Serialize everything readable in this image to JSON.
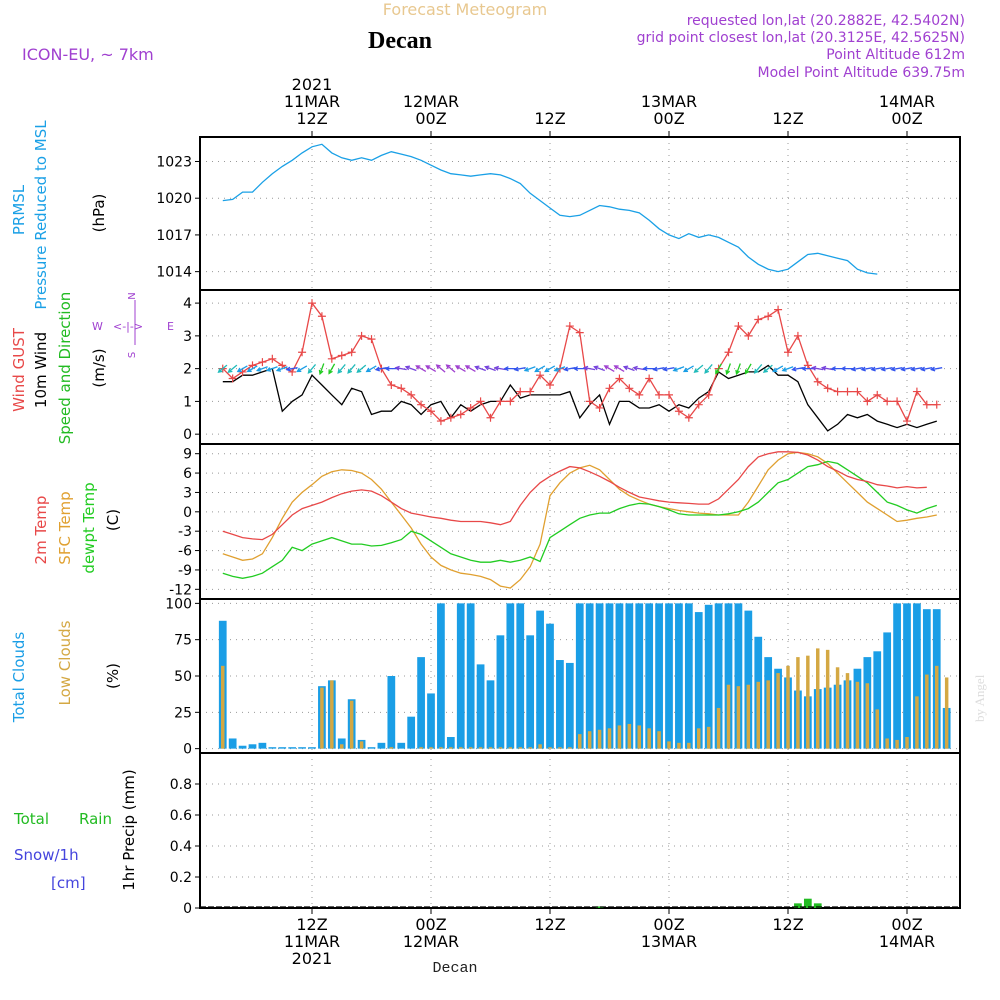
{
  "header": {
    "forecast_title": "Forecast Meteogram",
    "location": "Decan",
    "model": "ICON-EU, ~ 7km",
    "requested_point": "requested lon,lat (20.2882E, 42.5402N)",
    "grid_point": "grid point closest lon,lat (20.3125E, 42.5625N)",
    "point_altitude": "Point Altitude 612m",
    "model_altitude": "Model Point Altitude 639.75m",
    "footer_location": "Decan",
    "watermark": "by Angel"
  },
  "time_axis": {
    "start_hour": 0,
    "end_hour": 64,
    "top_labels": [
      {
        "hour": 9,
        "lines": [
          "2021",
          "11MAR",
          "12Z"
        ]
      },
      {
        "hour": 21,
        "lines": [
          "12MAR",
          "00Z"
        ]
      },
      {
        "hour": 33,
        "lines": [
          "12Z"
        ]
      },
      {
        "hour": 45,
        "lines": [
          "13MAR",
          "00Z"
        ]
      },
      {
        "hour": 57,
        "lines": [
          "12Z"
        ]
      },
      {
        "hour": 69,
        "lines": [
          "14MAR",
          "00Z"
        ]
      }
    ],
    "bottom_labels": [
      {
        "hour": 9,
        "lines": [
          "12Z",
          "11MAR",
          "2021"
        ]
      },
      {
        "hour": 21,
        "lines": [
          "00Z",
          "12MAR"
        ]
      },
      {
        "hour": 33,
        "lines": [
          "12Z"
        ]
      },
      {
        "hour": 45,
        "lines": [
          "00Z",
          "13MAR"
        ]
      },
      {
        "hour": 57,
        "lines": [
          "12Z"
        ]
      },
      {
        "hour": 69,
        "lines": [
          "00Z",
          "14MAR"
        ]
      }
    ]
  },
  "colors": {
    "pressure": "#1aa0e6",
    "gust": "#e84848",
    "wind": "#000000",
    "wind_green": "#22bb22",
    "temp": "#e84848",
    "sfc": "#e0a030",
    "dewpt": "#22cc22",
    "total_clouds": "#1a9ee6",
    "low_clouds": "#d4a843",
    "rain": "#22bb22",
    "snow": "#4444dd",
    "compass": "#a040d0",
    "header_purple": "#a040d0",
    "title_faded": "#e8c890"
  },
  "chart_data": [
    {
      "panel": "pressure",
      "type": "line",
      "label_lines": [
        "PRMSL",
        "Pressure Reduced to MSL"
      ],
      "unit": "(hPa)",
      "ylim": [
        1012.5,
        1025
      ],
      "yticks": [
        1014,
        1017,
        1020,
        1023
      ],
      "x_hours_start": 0,
      "values": [
        1019.8,
        1019.9,
        1020.5,
        1020.5,
        1021.3,
        1022.0,
        1022.6,
        1023.1,
        1023.7,
        1024.2,
        1024.4,
        1023.7,
        1023.3,
        1023.1,
        1023.3,
        1023.1,
        1023.5,
        1023.8,
        1023.6,
        1023.4,
        1023.1,
        1022.7,
        1022.3,
        1022.0,
        1021.9,
        1021.8,
        1021.9,
        1022.0,
        1021.9,
        1021.6,
        1021.2,
        1020.4,
        1019.8,
        1019.2,
        1018.6,
        1018.5,
        1018.6,
        1019.0,
        1019.4,
        1019.3,
        1019.1,
        1019.0,
        1018.8,
        1018.2,
        1017.5,
        1017.0,
        1016.7,
        1017.1,
        1016.8,
        1017.0,
        1016.8,
        1016.4,
        1016.0,
        1015.2,
        1014.6,
        1014.2,
        1014.0,
        1014.2,
        1014.8,
        1015.4,
        1015.5,
        1015.3,
        1015.1,
        1014.9,
        1014.2,
        1013.9,
        1013.8
      ]
    },
    {
      "panel": "wind",
      "type": "line",
      "label_lines": [
        "Wind GUST",
        "10m Wind",
        "Speed and Direction"
      ],
      "unit": "(m/s)",
      "compass": {
        "n": "N",
        "s": "S",
        "e": "E",
        "w": "W"
      },
      "ylim": [
        -0.3,
        4.4
      ],
      "yticks": [
        0,
        1,
        2,
        3,
        4
      ],
      "x_hours_start": 0,
      "gust": [
        2.0,
        1.7,
        1.9,
        2.1,
        2.2,
        2.3,
        2.1,
        1.9,
        2.5,
        4.0,
        3.6,
        2.3,
        2.4,
        2.5,
        3.0,
        2.9,
        2.0,
        1.5,
        1.4,
        1.2,
        0.9,
        0.7,
        0.4,
        0.5,
        0.6,
        0.8,
        1.0,
        0.5,
        1.0,
        1.0,
        1.3,
        1.3,
        1.8,
        1.5,
        2.0,
        3.3,
        3.1,
        1.0,
        0.8,
        1.4,
        1.7,
        1.4,
        1.2,
        1.7,
        1.2,
        1.2,
        0.7,
        0.5,
        0.9,
        1.2,
        2.0,
        2.5,
        3.3,
        3.0,
        3.5,
        3.6,
        3.8,
        2.5,
        3.0,
        2.1,
        1.6,
        1.4,
        1.3,
        1.3,
        1.3,
        1.0,
        1.2,
        1.0,
        1.0,
        0.4,
        1.3,
        0.9,
        0.9
      ],
      "wind": [
        1.6,
        1.6,
        1.8,
        1.8,
        1.9,
        2.0,
        0.7,
        1.0,
        1.2,
        1.8,
        1.5,
        1.2,
        0.9,
        1.4,
        1.3,
        0.6,
        0.7,
        0.7,
        1.0,
        0.9,
        0.6,
        0.9,
        1.0,
        0.5,
        0.9,
        0.7,
        0.9,
        1.0,
        1.0,
        1.5,
        1.1,
        1.2,
        1.2,
        1.2,
        1.2,
        1.3,
        0.5,
        0.9,
        1.2,
        0.3,
        1.0,
        1.0,
        0.8,
        0.8,
        0.9,
        0.7,
        0.9,
        0.8,
        1.1,
        1.3,
        1.9,
        1.7,
        1.8,
        1.9,
        1.9,
        2.1,
        1.8,
        1.8,
        1.6,
        0.9,
        0.5,
        0.1,
        0.3,
        0.6,
        0.5,
        0.6,
        0.4,
        0.3,
        0.2,
        0.3,
        0.2,
        0.3,
        0.4
      ],
      "arrow_y": 2.0,
      "arrow_dir_deg": [
        230,
        230,
        240,
        240,
        250,
        250,
        250,
        260,
        240,
        220,
        200,
        210,
        220,
        220,
        230,
        240,
        260,
        270,
        280,
        290,
        300,
        300,
        310,
        310,
        300,
        300,
        290,
        290,
        280,
        270,
        260,
        250,
        240,
        240,
        250,
        260,
        270,
        280,
        290,
        300,
        300,
        290,
        280,
        270,
        260,
        260,
        250,
        240,
        230,
        220,
        210,
        200,
        200,
        210,
        220,
        230,
        240,
        250,
        260,
        270,
        280,
        280,
        270,
        270,
        260,
        260,
        260,
        260,
        260,
        260,
        260,
        260,
        260
      ]
    },
    {
      "panel": "temperature",
      "type": "line",
      "label_lines": [
        "2m Temp",
        "SFC Temp",
        "dewpt Temp"
      ],
      "unit": "(C)",
      "ylim": [
        -13.5,
        10.5
      ],
      "yticks": [
        -12,
        -9,
        -6,
        -3,
        0,
        3,
        6,
        9
      ],
      "x_hours_start": 0,
      "temp2m": [
        -3.0,
        -3.5,
        -4.0,
        -4.2,
        -4.3,
        -3.5,
        -2.0,
        -0.5,
        0.5,
        1.0,
        1.5,
        2.2,
        2.8,
        3.2,
        3.4,
        3.2,
        2.5,
        1.5,
        0.5,
        -0.2,
        -0.5,
        -0.8,
        -1.0,
        -1.3,
        -1.5,
        -1.5,
        -1.5,
        -1.7,
        -2.0,
        -1.5,
        1.0,
        3.0,
        4.5,
        5.5,
        6.3,
        7.0,
        6.8,
        6.2,
        5.5,
        4.7,
        3.8,
        3.0,
        2.3,
        2.0,
        1.7,
        1.5,
        1.4,
        1.3,
        1.2,
        1.2,
        2.0,
        3.5,
        5.0,
        7.0,
        8.5,
        9.0,
        9.3,
        9.3,
        9.2,
        8.8,
        8.0,
        7.0,
        6.3,
        5.5,
        5.0,
        4.7,
        4.2,
        4.0,
        3.7,
        3.9,
        3.7,
        3.8
      ],
      "sfc": [
        -6.5,
        -7.0,
        -7.5,
        -7.3,
        -6.5,
        -4.0,
        -1.0,
        1.5,
        3.0,
        4.2,
        5.5,
        6.2,
        6.5,
        6.4,
        6.0,
        5.0,
        3.5,
        1.5,
        -0.5,
        -2.5,
        -5.0,
        -7.0,
        -8.3,
        -9.0,
        -9.5,
        -9.7,
        -10.0,
        -10.5,
        -11.5,
        -11.8,
        -10.5,
        -8.5,
        -5.0,
        2.5,
        4.5,
        6.0,
        6.8,
        7.2,
        6.5,
        5.0,
        3.5,
        2.5,
        1.8,
        1.2,
        0.8,
        0.5,
        0.2,
        0.0,
        -0.2,
        -0.3,
        -0.5,
        -0.5,
        -0.5,
        1.5,
        4.0,
        6.5,
        8.0,
        9.0,
        9.2,
        9.0,
        8.5,
        7.5,
        6.0,
        4.5,
        3.0,
        1.5,
        0.5,
        -0.5,
        -1.5,
        -1.3,
        -1.0,
        -0.8,
        -0.5
      ],
      "dewpt": [
        -9.5,
        -10.0,
        -10.3,
        -10.0,
        -9.5,
        -8.5,
        -7.5,
        -5.5,
        -6.0,
        -5.0,
        -4.5,
        -4.0,
        -4.5,
        -5.0,
        -5.0,
        -5.3,
        -5.2,
        -4.8,
        -4.3,
        -3.0,
        -3.5,
        -4.5,
        -5.5,
        -6.5,
        -7.0,
        -7.5,
        -7.8,
        -7.8,
        -7.5,
        -7.8,
        -7.5,
        -7.0,
        -7.7,
        -4.0,
        -3.0,
        -2.0,
        -1.0,
        -0.5,
        -0.2,
        -0.2,
        0.5,
        1.0,
        1.3,
        1.2,
        0.8,
        0.3,
        -0.3,
        -0.5,
        -0.5,
        -0.5,
        -0.5,
        -0.3,
        0.0,
        0.5,
        1.5,
        3.0,
        4.5,
        5.0,
        6.0,
        7.0,
        7.3,
        7.8,
        7.5,
        6.5,
        5.5,
        4.5,
        3.0,
        1.5,
        1.0,
        0.3,
        -0.2,
        0.5,
        1.0
      ],
      "legend_colors": [
        "temp",
        "sfc",
        "dewpt"
      ]
    },
    {
      "panel": "clouds",
      "type": "bar",
      "label_lines": [
        "Total Clouds",
        "Low Clouds"
      ],
      "unit": "(%)",
      "ylim": [
        -3,
        103
      ],
      "yticks": [
        0,
        25,
        50,
        75,
        100
      ],
      "x_hours_start": 0,
      "total": [
        88,
        7,
        2,
        3,
        4,
        1,
        1,
        1,
        1,
        1,
        43,
        47,
        7,
        34,
        6,
        1,
        4,
        50,
        4,
        22,
        63,
        38,
        100,
        8,
        100,
        100,
        58,
        47,
        78,
        100,
        100,
        78,
        95,
        86,
        61,
        59,
        100,
        100,
        100,
        100,
        100,
        100,
        100,
        100,
        100,
        100,
        100,
        100,
        94,
        99,
        100,
        100,
        100,
        95,
        77,
        63,
        55,
        49,
        40,
        36,
        41,
        42,
        44,
        47,
        55,
        63,
        67,
        80,
        100,
        100,
        100,
        96,
        96,
        28
      ],
      "low": [
        57,
        0,
        0,
        0,
        0,
        0,
        0,
        0,
        0,
        0,
        42,
        47,
        3,
        33,
        5,
        0,
        0,
        1,
        0,
        0,
        1,
        1,
        1,
        1,
        1,
        1,
        1,
        1,
        1,
        1,
        1,
        1,
        3,
        1,
        1,
        1,
        10,
        12,
        13,
        14,
        16,
        17,
        16,
        14,
        12,
        5,
        4,
        4,
        14,
        15,
        28,
        44,
        43,
        44,
        46,
        47,
        52,
        57,
        63,
        64,
        69,
        68,
        56,
        52,
        46,
        45,
        27,
        7,
        6,
        8,
        36,
        51,
        57,
        49
      ]
    },
    {
      "panel": "precip",
      "type": "bar",
      "label_lines": [
        "1hr Precip (mm)"
      ],
      "legend": {
        "total": "Total",
        "rain": "Rain",
        "snow": "Snow/1h",
        "snow_unit": "[cm]"
      },
      "ylim": [
        0,
        1.0
      ],
      "yticks": [
        0,
        0.2,
        0.4,
        0.6,
        0.8
      ],
      "x_hours_start": 0,
      "rain": [
        0,
        0,
        0,
        0,
        0,
        0,
        0,
        0,
        0,
        0,
        0,
        0,
        0,
        0,
        0,
        0,
        0,
        0,
        0,
        0,
        0,
        0,
        0,
        0,
        0,
        0,
        0,
        0,
        0,
        0,
        0,
        0,
        0,
        0,
        0,
        0,
        0,
        0,
        0.01,
        0,
        0,
        0,
        0,
        0,
        0,
        0,
        0,
        0,
        0,
        0,
        0,
        0,
        0,
        0,
        0,
        0,
        0,
        0,
        0.03,
        0.06,
        0.03,
        0,
        0,
        0,
        0,
        0,
        0,
        0,
        0,
        0,
        0,
        0,
        0,
        0
      ],
      "snow": []
    }
  ]
}
